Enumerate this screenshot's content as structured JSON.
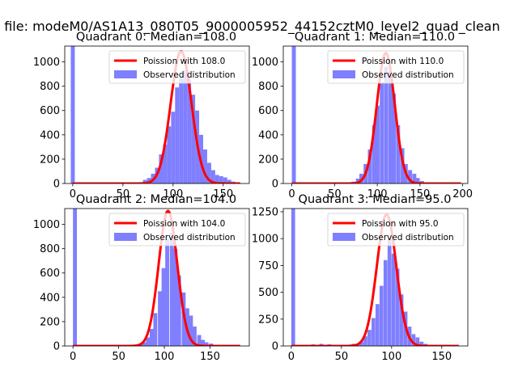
{
  "figure": {
    "suptitle": "n file: modeM0/AS1A13_080T05_9000005952_44152cztM0_level2_quad_clean"
  },
  "colors": {
    "hist": "#7f7fff",
    "poisson": "#ff0000",
    "axis": "#000000",
    "background": "#ffffff"
  },
  "chart_data": [
    {
      "type": "bar",
      "title": "Quadrant 0: Median=108.0",
      "xlim": [
        -8,
        176
      ],
      "ylim": [
        0,
        1130
      ],
      "xticks": [
        0,
        50,
        100,
        150
      ],
      "yticks": [
        0,
        200,
        400,
        600,
        800,
        1000
      ],
      "legend": {
        "placement": "top-right",
        "line_label": "Poission with 108.0",
        "hist_label": "Observed distribution"
      },
      "median": 108,
      "poisson_peak": 1087,
      "bin_width": 4,
      "histogram": [
        {
          "x": -2,
          "y": 1130
        },
        {
          "x": 50,
          "y": 4
        },
        {
          "x": 58,
          "y": 6
        },
        {
          "x": 66,
          "y": 10
        },
        {
          "x": 70,
          "y": 30
        },
        {
          "x": 74,
          "y": 45
        },
        {
          "x": 78,
          "y": 80
        },
        {
          "x": 82,
          "y": 130
        },
        {
          "x": 86,
          "y": 240
        },
        {
          "x": 90,
          "y": 320
        },
        {
          "x": 94,
          "y": 470
        },
        {
          "x": 98,
          "y": 590
        },
        {
          "x": 102,
          "y": 790
        },
        {
          "x": 106,
          "y": 870
        },
        {
          "x": 110,
          "y": 930
        },
        {
          "x": 114,
          "y": 860
        },
        {
          "x": 118,
          "y": 730
        },
        {
          "x": 122,
          "y": 600
        },
        {
          "x": 126,
          "y": 400
        },
        {
          "x": 130,
          "y": 280
        },
        {
          "x": 134,
          "y": 170
        },
        {
          "x": 138,
          "y": 110
        },
        {
          "x": 142,
          "y": 70
        },
        {
          "x": 146,
          "y": 60
        },
        {
          "x": 150,
          "y": 50
        },
        {
          "x": 154,
          "y": 30
        },
        {
          "x": 158,
          "y": 15
        },
        {
          "x": 162,
          "y": 8
        }
      ],
      "poisson_x_range": [
        0,
        167
      ]
    },
    {
      "type": "bar",
      "title": "Quadrant 1: Median=110.0",
      "xlim": [
        -10,
        206
      ],
      "ylim": [
        0,
        1130
      ],
      "xticks": [
        0,
        50,
        100,
        150,
        200
      ],
      "yticks": [
        0,
        200,
        400,
        600,
        800,
        1000
      ],
      "legend": {
        "placement": "top-right",
        "line_label": "Poission with 110.0",
        "hist_label": "Observed distribution"
      },
      "median": 110,
      "poisson_peak": 1073,
      "bin_width": 4.7,
      "histogram": [
        {
          "x": 0,
          "y": 1130
        },
        {
          "x": 70,
          "y": 15
        },
        {
          "x": 75,
          "y": 40
        },
        {
          "x": 79,
          "y": 80
        },
        {
          "x": 84,
          "y": 160
        },
        {
          "x": 89,
          "y": 280
        },
        {
          "x": 94,
          "y": 480
        },
        {
          "x": 98,
          "y": 640
        },
        {
          "x": 103,
          "y": 830
        },
        {
          "x": 108,
          "y": 960
        },
        {
          "x": 113,
          "y": 920
        },
        {
          "x": 117,
          "y": 740
        },
        {
          "x": 122,
          "y": 480
        },
        {
          "x": 127,
          "y": 290
        },
        {
          "x": 131,
          "y": 160
        },
        {
          "x": 136,
          "y": 110
        },
        {
          "x": 141,
          "y": 80
        },
        {
          "x": 145,
          "y": 45
        },
        {
          "x": 150,
          "y": 20
        },
        {
          "x": 155,
          "y": 8
        },
        {
          "x": 160,
          "y": 5
        }
      ],
      "poisson_x_range": [
        0,
        198
      ]
    },
    {
      "type": "bar",
      "title": "Quadrant 2: Median=104.0",
      "xlim": [
        -9,
        193
      ],
      "ylim": [
        0,
        1130
      ],
      "xticks": [
        0,
        50,
        100,
        150
      ],
      "yticks": [
        0,
        200,
        400,
        600,
        800,
        1000
      ],
      "legend": {
        "placement": "top-right",
        "line_label": "Poission with 104.0",
        "hist_label": "Observed distribution"
      },
      "median": 104,
      "poisson_peak": 1110,
      "bin_width": 4.3,
      "histogram": [
        {
          "x": 0,
          "y": 1130
        },
        {
          "x": 60,
          "y": 4
        },
        {
          "x": 72,
          "y": 15
        },
        {
          "x": 76,
          "y": 30
        },
        {
          "x": 80,
          "y": 70
        },
        {
          "x": 84,
          "y": 140
        },
        {
          "x": 88,
          "y": 270
        },
        {
          "x": 93,
          "y": 450
        },
        {
          "x": 97,
          "y": 640
        },
        {
          "x": 101,
          "y": 880
        },
        {
          "x": 106,
          "y": 930
        },
        {
          "x": 110,
          "y": 800
        },
        {
          "x": 114,
          "y": 580
        },
        {
          "x": 119,
          "y": 440
        },
        {
          "x": 123,
          "y": 310
        },
        {
          "x": 127,
          "y": 250
        },
        {
          "x": 131,
          "y": 160
        },
        {
          "x": 136,
          "y": 90
        },
        {
          "x": 140,
          "y": 50
        },
        {
          "x": 144,
          "y": 30
        },
        {
          "x": 149,
          "y": 20
        },
        {
          "x": 153,
          "y": 10
        },
        {
          "x": 157,
          "y": 5
        }
      ],
      "poisson_x_range": [
        0,
        183
      ]
    },
    {
      "type": "bar",
      "title": "Quadrant 3: Median=95.0",
      "xlim": [
        -8,
        176
      ],
      "ylim": [
        0,
        1280
      ],
      "xticks": [
        0,
        50,
        100,
        150
      ],
      "yticks": [
        0,
        250,
        500,
        750,
        1000,
        1250
      ],
      "legend": {
        "placement": "top-right",
        "line_label": "Poission with 95.0",
        "hist_label": "Observed distribution"
      },
      "median": 95,
      "poisson_peak": 1225,
      "bin_width": 3.8,
      "histogram": [
        {
          "x": 0,
          "y": 1280
        },
        {
          "x": 20,
          "y": 15
        },
        {
          "x": 28,
          "y": 20
        },
        {
          "x": 36,
          "y": 15
        },
        {
          "x": 44,
          "y": 10
        },
        {
          "x": 52,
          "y": 10
        },
        {
          "x": 60,
          "y": 20
        },
        {
          "x": 64,
          "y": 15
        },
        {
          "x": 68,
          "y": 40
        },
        {
          "x": 72,
          "y": 90
        },
        {
          "x": 76,
          "y": 150
        },
        {
          "x": 80,
          "y": 260
        },
        {
          "x": 84,
          "y": 390
        },
        {
          "x": 88,
          "y": 560
        },
        {
          "x": 92,
          "y": 800
        },
        {
          "x": 96,
          "y": 1000
        },
        {
          "x": 100,
          "y": 860
        },
        {
          "x": 104,
          "y": 720
        },
        {
          "x": 108,
          "y": 480
        },
        {
          "x": 112,
          "y": 320
        },
        {
          "x": 116,
          "y": 180
        },
        {
          "x": 120,
          "y": 110
        },
        {
          "x": 124,
          "y": 80
        },
        {
          "x": 128,
          "y": 40
        },
        {
          "x": 132,
          "y": 20
        },
        {
          "x": 136,
          "y": 10
        }
      ],
      "poisson_x_range": [
        0,
        167
      ]
    }
  ]
}
